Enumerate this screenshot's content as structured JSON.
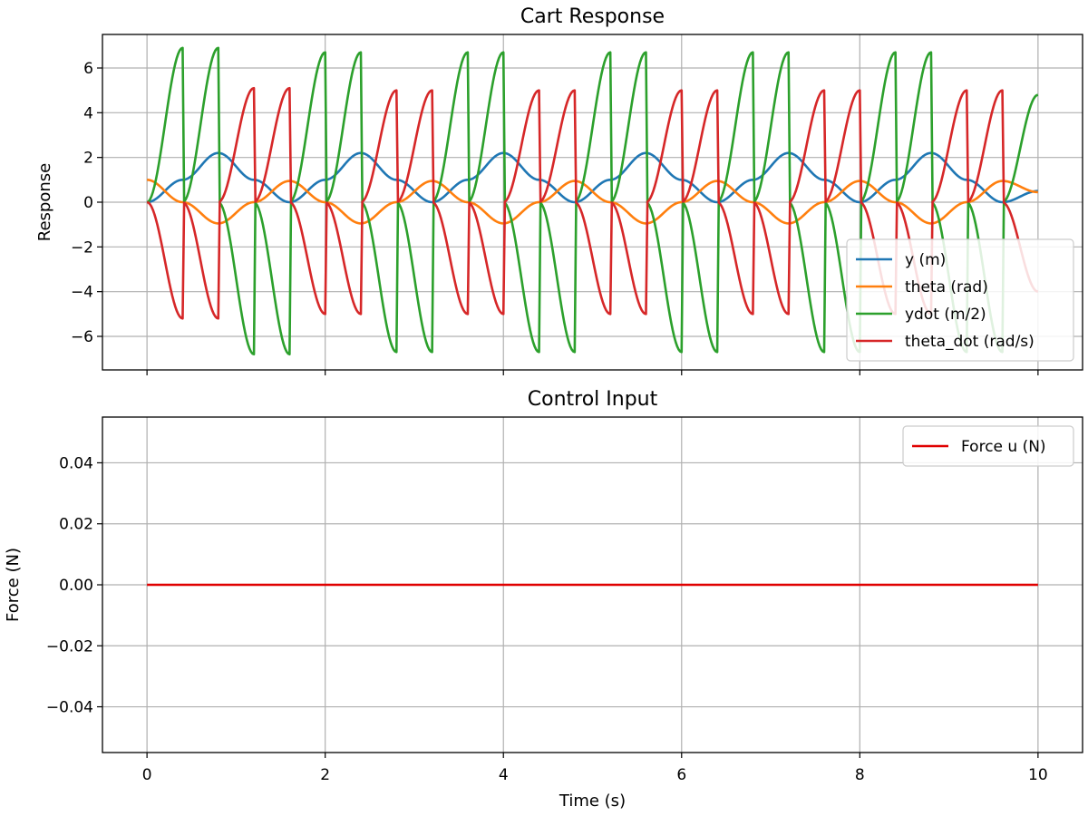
{
  "chart_data": [
    {
      "type": "line",
      "title": "Cart Response",
      "xlabel": "",
      "ylabel": "Response",
      "xlim": [
        -0.5,
        10.5
      ],
      "ylim": [
        -7.5,
        7.5
      ],
      "xticks": [
        0,
        2,
        4,
        6,
        8,
        10
      ],
      "xtick_labels_visible": false,
      "yticks": [
        -6,
        -4,
        -2,
        0,
        2,
        4,
        6
      ],
      "grid": true,
      "legend_position": "lower-right",
      "x": [
        0,
        0.4,
        0.8,
        1.2,
        1.6,
        2.0,
        2.4,
        2.8,
        3.2,
        3.6,
        4.0,
        4.4,
        4.8,
        5.2,
        5.6,
        6.0,
        6.4,
        6.8,
        7.2,
        7.6,
        8.0,
        8.4,
        8.8,
        9.2,
        9.6,
        10.0
      ],
      "series": [
        {
          "name": "y (m)",
          "color": "#1f77b4",
          "values": [
            0.0,
            1.0,
            2.2,
            1.0,
            0.0,
            1.0,
            2.2,
            1.0,
            0.0,
            1.0,
            2.2,
            1.0,
            0.0,
            1.0,
            2.2,
            1.0,
            0.0,
            1.0,
            2.2,
            1.0,
            0.0,
            1.0,
            2.2,
            1.0,
            0.0,
            0.5
          ]
        },
        {
          "name": "theta (rad)",
          "color": "#ff7f0e",
          "values": [
            1.0,
            0.0,
            -0.95,
            0.0,
            0.95,
            0.0,
            -0.95,
            0.0,
            0.95,
            0.0,
            -0.95,
            0.0,
            0.95,
            0.0,
            -0.95,
            0.0,
            0.95,
            0.0,
            -0.95,
            0.0,
            0.95,
            0.0,
            -0.95,
            0.0,
            0.95,
            0.45
          ]
        },
        {
          "name": "ydot (m/2)",
          "color": "#2ca02c",
          "values": [
            0.0,
            6.9,
            0.0,
            -6.8,
            0.0,
            6.7,
            0.0,
            -6.7,
            0.0,
            6.7,
            0.0,
            -6.7,
            0.0,
            6.7,
            0.0,
            -6.7,
            0.0,
            6.7,
            0.0,
            -6.7,
            0.0,
            6.7,
            0.0,
            -6.7,
            0.0,
            4.8
          ]
        },
        {
          "name": "theta_dot (rad/s)",
          "color": "#d62728",
          "values": [
            0.0,
            -5.2,
            0.0,
            5.1,
            0.0,
            -5.0,
            0.0,
            5.0,
            0.0,
            -5.0,
            0.0,
            5.0,
            0.0,
            -5.0,
            0.0,
            5.0,
            0.0,
            -5.0,
            0.0,
            5.0,
            0.0,
            -5.0,
            0.0,
            5.0,
            0.0,
            -4.0
          ]
        }
      ]
    },
    {
      "type": "line",
      "title": "Control Input",
      "xlabel": "Time (s)",
      "ylabel": "Force (N)",
      "xlim": [
        -0.5,
        10.5
      ],
      "ylim": [
        -0.055,
        0.055
      ],
      "xticks": [
        0,
        2,
        4,
        6,
        8,
        10
      ],
      "xtick_labels": [
        "0",
        "2",
        "4",
        "6",
        "8",
        "10"
      ],
      "yticks": [
        -0.04,
        -0.02,
        0.0,
        0.02,
        0.04
      ],
      "ytick_labels": [
        "−0.04",
        "−0.02",
        "0.00",
        "0.02",
        "0.04"
      ],
      "grid": true,
      "legend_position": "top-right",
      "x": [
        0,
        10
      ],
      "series": [
        {
          "name": "Force u (N)",
          "color": "#e00000",
          "values": [
            0.0,
            0.0
          ]
        }
      ]
    }
  ]
}
